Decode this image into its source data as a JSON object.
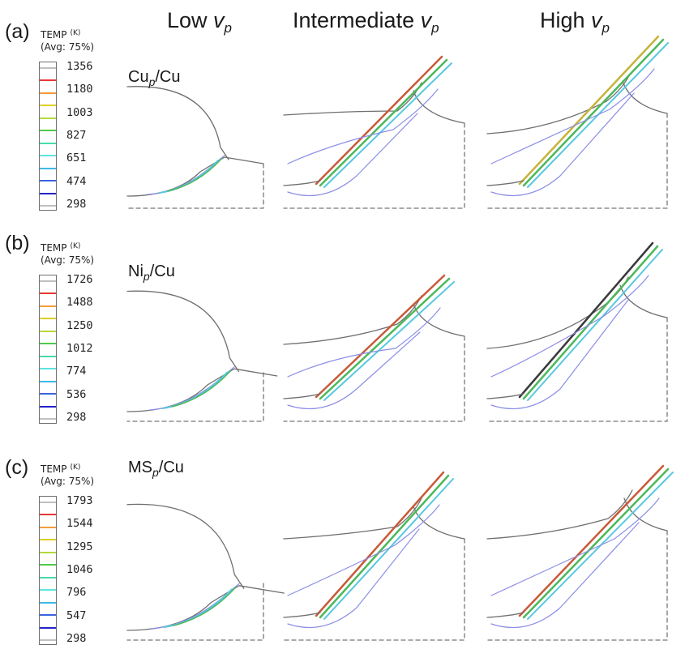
{
  "columns": [
    {
      "prefix": "Low",
      "var": "v",
      "sub": "p"
    },
    {
      "prefix": "Intermediate",
      "var": "v",
      "sub": "p"
    },
    {
      "prefix": "High",
      "var": "v",
      "sub": "p"
    }
  ],
  "rows": [
    {
      "letter": "(a)",
      "legend_title": "TEMP",
      "legend_unit": "(K)",
      "legend_avg": "(Avg: 75%)",
      "legend_values": [
        "1356",
        "1180",
        "1003",
        "827",
        "651",
        "474",
        "298"
      ],
      "material_main": "Cu",
      "material_sub": "p",
      "material_tail": "/Cu"
    },
    {
      "letter": "(b)",
      "legend_title": "TEMP",
      "legend_unit": "(K)",
      "legend_avg": "(Avg: 75%)",
      "legend_values": [
        "1726",
        "1488",
        "1250",
        "1012",
        "774",
        "536",
        "298"
      ],
      "material_main": "Ni",
      "material_sub": "p",
      "material_tail": "/Cu"
    },
    {
      "letter": "(c)",
      "legend_title": "TEMP",
      "legend_unit": "(K)",
      "legend_avg": "(Avg: 75%)",
      "legend_values": [
        "1793",
        "1544",
        "1295",
        "1046",
        "796",
        "547",
        "298"
      ],
      "material_main": "MS",
      "material_sub": "p",
      "material_tail": "/Cu"
    }
  ],
  "colors": {
    "legend_bands": [
      "#bfbfbf",
      "#e53935",
      "#f39c3d",
      "#e3cd28",
      "#b5d93c",
      "#4fc84f",
      "#48dba5",
      "#5fe3de",
      "#3eb9ea",
      "#3b63e0",
      "#2424c8",
      "#c0c0c0"
    ],
    "outline": "#6f6f6f",
    "contour": "#8b8ee6",
    "jet_cool": "#58c8e0",
    "jet_mid": "#4cb85a",
    "jet_hot": "#c85a3a"
  }
}
